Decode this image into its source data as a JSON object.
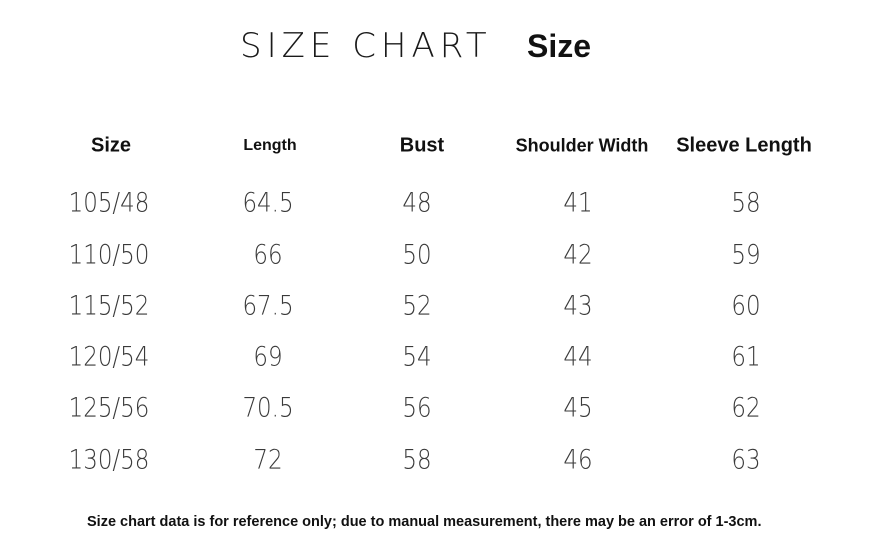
{
  "title": "SIZE CHART",
  "subtitle": "Size",
  "table": {
    "headers": [
      "Size",
      "Length",
      "Bust",
      "Shoulder Width",
      "Sleeve Length"
    ],
    "rows": [
      [
        "105/48",
        "64.5",
        "48",
        "41",
        "58"
      ],
      [
        "110/50",
        "66",
        "50",
        "42",
        "59"
      ],
      [
        "115/52",
        "67.5",
        "52",
        "43",
        "60"
      ],
      [
        "120/54",
        "69",
        "54",
        "44",
        "61"
      ],
      [
        "125/56",
        "70.5",
        "56",
        "45",
        "62"
      ],
      [
        "130/58",
        "72",
        "58",
        "46",
        "63"
      ]
    ]
  },
  "footnote": "Size chart data is for reference only; due to manual measurement, there may be an error of 1-3cm."
}
